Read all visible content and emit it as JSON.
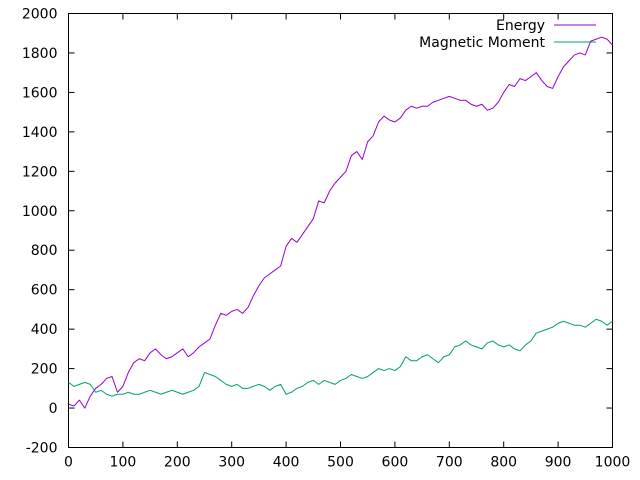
{
  "chart_data": {
    "type": "line",
    "title": "",
    "xlabel": "",
    "ylabel": "",
    "xlim": [
      0,
      1000
    ],
    "ylim": [
      -200,
      2000
    ],
    "xticks": [
      0,
      100,
      200,
      300,
      400,
      500,
      600,
      700,
      800,
      900,
      1000
    ],
    "yticks": [
      -200,
      0,
      200,
      400,
      600,
      800,
      1000,
      1200,
      1400,
      1600,
      1800,
      2000
    ],
    "grid": false,
    "legend_position": "top-right",
    "series": [
      {
        "name": "Energy",
        "color": "#9400d3",
        "x": [
          0,
          10,
          20,
          30,
          40,
          50,
          60,
          70,
          80,
          90,
          100,
          110,
          120,
          130,
          140,
          150,
          160,
          170,
          180,
          190,
          200,
          210,
          220,
          230,
          240,
          250,
          260,
          270,
          280,
          290,
          300,
          310,
          320,
          330,
          340,
          350,
          360,
          370,
          380,
          390,
          400,
          410,
          420,
          430,
          440,
          450,
          460,
          470,
          480,
          490,
          500,
          510,
          520,
          530,
          540,
          550,
          560,
          570,
          580,
          590,
          600,
          610,
          620,
          630,
          640,
          650,
          660,
          670,
          680,
          690,
          700,
          710,
          720,
          730,
          740,
          750,
          760,
          770,
          780,
          790,
          800,
          810,
          820,
          830,
          840,
          850,
          860,
          870,
          880,
          890,
          900,
          910,
          920,
          930,
          940,
          950,
          960,
          970,
          980,
          990,
          1000
        ],
        "y": [
          20,
          10,
          40,
          0,
          60,
          100,
          120,
          150,
          160,
          80,
          110,
          180,
          230,
          250,
          240,
          280,
          300,
          270,
          250,
          260,
          280,
          300,
          260,
          280,
          310,
          330,
          350,
          420,
          480,
          470,
          490,
          500,
          480,
          510,
          570,
          620,
          660,
          680,
          700,
          720,
          820,
          860,
          840,
          880,
          920,
          960,
          1050,
          1040,
          1100,
          1140,
          1170,
          1200,
          1280,
          1300,
          1260,
          1350,
          1380,
          1450,
          1480,
          1460,
          1450,
          1470,
          1510,
          1530,
          1520,
          1530,
          1530,
          1550,
          1560,
          1570,
          1580,
          1570,
          1560,
          1560,
          1540,
          1530,
          1540,
          1510,
          1520,
          1550,
          1600,
          1640,
          1630,
          1670,
          1660,
          1680,
          1700,
          1660,
          1630,
          1620,
          1680,
          1730,
          1760,
          1790,
          1800,
          1790,
          1860,
          1870,
          1880,
          1870,
          1840
        ]
      },
      {
        "name": "Magnetic Moment",
        "color": "#009e73",
        "x": [
          0,
          10,
          20,
          30,
          40,
          50,
          60,
          70,
          80,
          90,
          100,
          110,
          120,
          130,
          140,
          150,
          160,
          170,
          180,
          190,
          200,
          210,
          220,
          230,
          240,
          250,
          260,
          270,
          280,
          290,
          300,
          310,
          320,
          330,
          340,
          350,
          360,
          370,
          380,
          390,
          400,
          410,
          420,
          430,
          440,
          450,
          460,
          470,
          480,
          490,
          500,
          510,
          520,
          530,
          540,
          550,
          560,
          570,
          580,
          590,
          600,
          610,
          620,
          630,
          640,
          650,
          660,
          670,
          680,
          690,
          700,
          710,
          720,
          730,
          740,
          750,
          760,
          770,
          780,
          790,
          800,
          810,
          820,
          830,
          840,
          850,
          860,
          870,
          880,
          890,
          900,
          910,
          920,
          930,
          940,
          950,
          960,
          970,
          980,
          990,
          1000
        ],
        "y": [
          130,
          110,
          120,
          130,
          120,
          80,
          90,
          70,
          60,
          70,
          70,
          80,
          70,
          70,
          80,
          90,
          80,
          70,
          80,
          90,
          80,
          70,
          80,
          90,
          110,
          180,
          170,
          160,
          140,
          120,
          110,
          120,
          100,
          100,
          110,
          120,
          110,
          90,
          110,
          120,
          70,
          80,
          100,
          110,
          130,
          140,
          120,
          140,
          130,
          120,
          140,
          150,
          170,
          160,
          150,
          160,
          180,
          200,
          190,
          200,
          190,
          210,
          260,
          240,
          240,
          260,
          270,
          250,
          230,
          260,
          270,
          310,
          320,
          340,
          320,
          310,
          300,
          330,
          340,
          320,
          310,
          320,
          300,
          290,
          320,
          340,
          380,
          390,
          400,
          410,
          430,
          440,
          430,
          420,
          420,
          410,
          430,
          450,
          440,
          420,
          440
        ]
      }
    ]
  }
}
